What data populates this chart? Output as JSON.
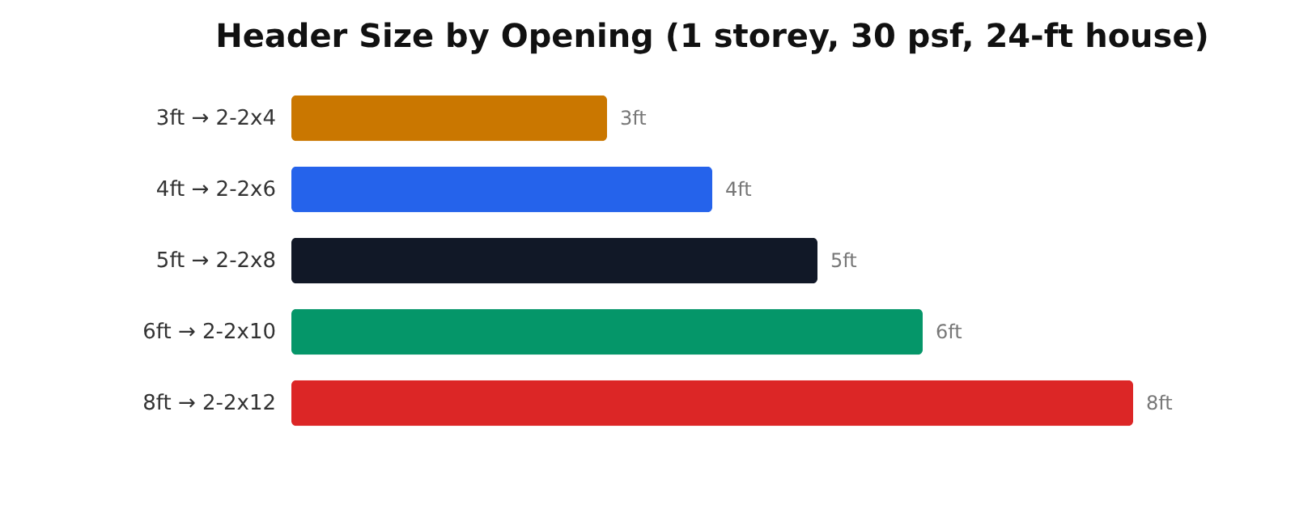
{
  "chart_data": {
    "type": "bar",
    "orientation": "horizontal",
    "title": "Header Size by Opening (1 storey, 30 psf, 24-ft house)",
    "categories": [
      "3ft → 2-2x4",
      "4ft → 2-2x6",
      "5ft → 2-2x8",
      "6ft → 2-2x10",
      "8ft → 2-2x12"
    ],
    "values": [
      3,
      4,
      5,
      6,
      8
    ],
    "colors": [
      "#ca7700",
      "#2563eb",
      "#111827",
      "#059669",
      "#dc2626"
    ],
    "value_labels": [
      "3ft",
      "4ft",
      "5ft",
      "6ft",
      "8ft"
    ],
    "grid": false
  }
}
